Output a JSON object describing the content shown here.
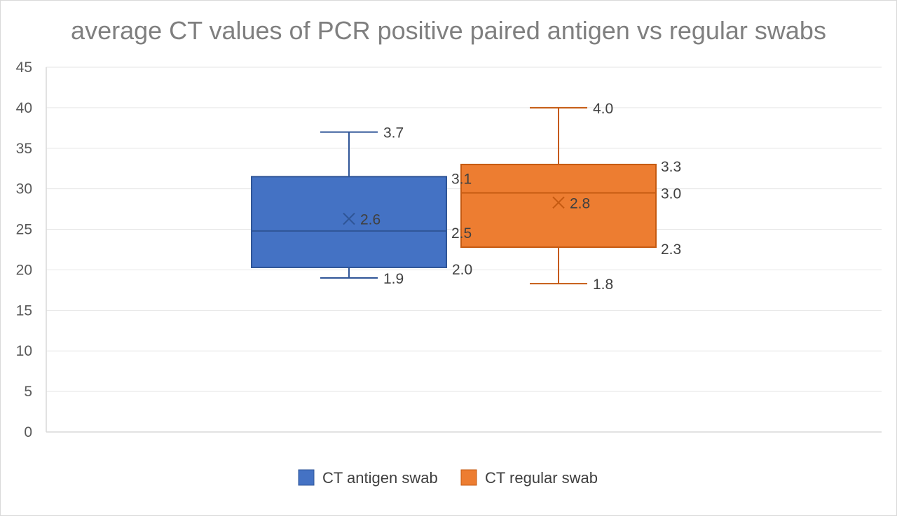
{
  "chart_data": {
    "type": "box",
    "title": "average CT values of PCR positive paired antigen vs regular swabs",
    "ylim": [
      0,
      45
    ],
    "yticks": [
      0,
      5,
      10,
      15,
      20,
      25,
      30,
      35,
      40,
      45
    ],
    "grid": true,
    "legend_position": "bottom",
    "series": [
      {
        "name": "CT antigen swab",
        "color": "#4472c4",
        "edge": "#2f5597",
        "min": 19.0,
        "q1": 20.3,
        "median": 24.8,
        "q3": 31.5,
        "max": 37.0,
        "mean": 26.3,
        "labels": {
          "max": "3.7",
          "q3": "3.1",
          "median": "2.5",
          "q1": "2.0",
          "min": "1.9",
          "mean": "2.6"
        }
      },
      {
        "name": "CT regular swab",
        "color": "#ed7d31",
        "edge": "#c55a11",
        "min": 18.3,
        "q1": 22.8,
        "median": 29.5,
        "q3": 33.0,
        "max": 40.0,
        "mean": 28.3,
        "labels": {
          "max": "4.0",
          "q3": "3.3",
          "median": "3.0",
          "q1": "2.3",
          "min": "1.8",
          "mean": "2.8"
        }
      }
    ]
  }
}
